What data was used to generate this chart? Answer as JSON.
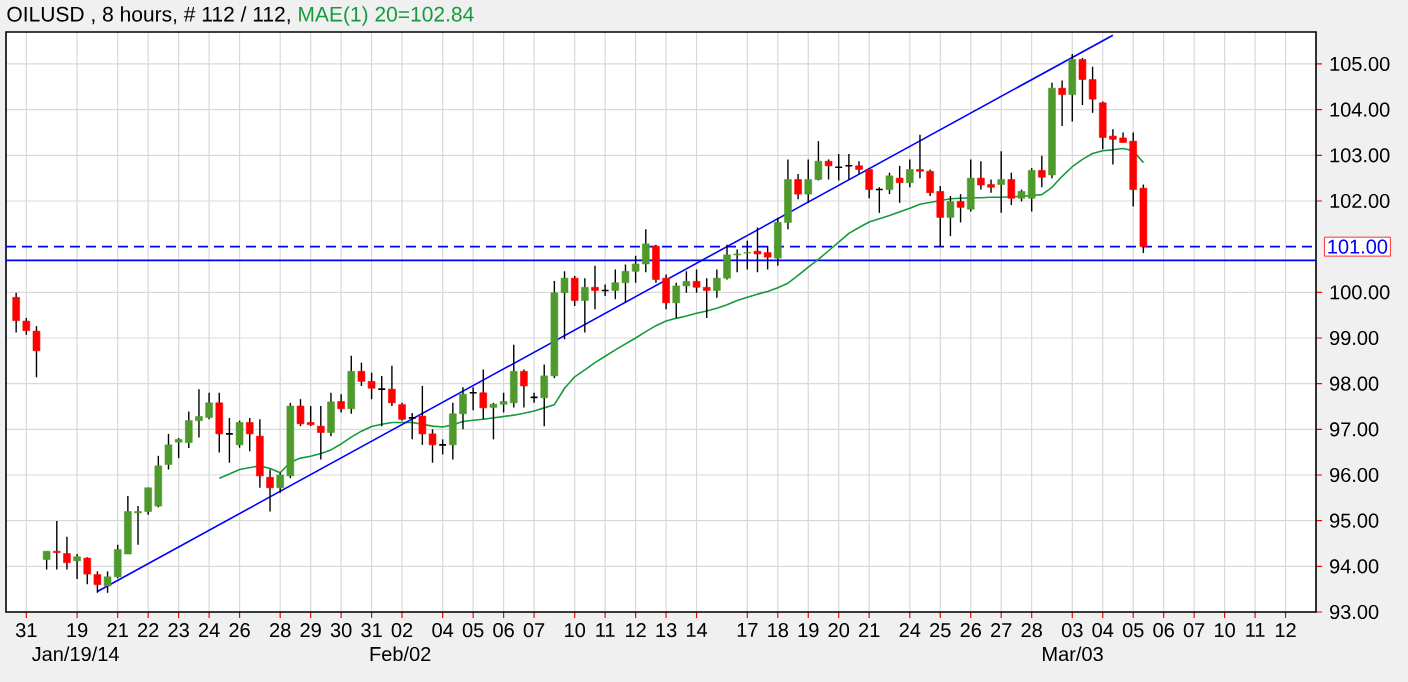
{
  "chart_data": {
    "type": "candlestick",
    "title": "OILUSD , 8 hours, # 112 / 112,",
    "categories": [
      null,
      "31",
      null,
      null,
      null,
      null,
      "19",
      null,
      null,
      null,
      "21",
      null,
      null,
      "22",
      null,
      null,
      "23",
      null,
      null,
      "24",
      null,
      null,
      "26",
      null,
      null,
      null,
      "28",
      null,
      null,
      "29",
      null,
      null,
      "30",
      null,
      null,
      "31",
      null,
      null,
      "02",
      null,
      null,
      null,
      "04",
      null,
      null,
      "05",
      null,
      null,
      "06",
      null,
      null,
      "07",
      null,
      null,
      null,
      "10",
      null,
      null,
      "11",
      null,
      null,
      "12",
      null,
      null,
      "13",
      null,
      null,
      "14",
      null,
      null,
      null,
      null,
      "17",
      null,
      null,
      "18",
      null,
      null,
      "19",
      null,
      null,
      "20",
      null,
      null,
      "21",
      null,
      null,
      null,
      "24",
      null,
      null,
      "25",
      null,
      null,
      "26",
      null,
      null,
      "27",
      null,
      null,
      "28",
      null,
      null,
      null,
      "03",
      null,
      null,
      "04",
      null,
      null,
      "05",
      null,
      null,
      "06",
      null,
      null,
      "07",
      null,
      null,
      "10",
      null,
      null,
      "11",
      null,
      null,
      "12",
      null,
      null,
      null
    ],
    "ohlc": [
      [
        99.89,
        99.99,
        99.12,
        99.38
      ],
      [
        99.37,
        99.44,
        99.07,
        99.16
      ],
      [
        99.15,
        99.26,
        98.14,
        98.72
      ],
      [
        94.15,
        94.33,
        93.93,
        94.33
      ],
      [
        94.33,
        94.99,
        93.93,
        94.3
      ],
      [
        94.28,
        94.65,
        93.93,
        94.08
      ],
      [
        94.12,
        94.27,
        93.72,
        94.21
      ],
      [
        94.18,
        94.2,
        93.61,
        93.83
      ],
      [
        93.82,
        93.89,
        93.42,
        93.6
      ],
      [
        93.57,
        93.89,
        93.42,
        93.77
      ],
      [
        93.77,
        94.47,
        93.74,
        94.37
      ],
      [
        94.27,
        95.54,
        94.27,
        95.2
      ],
      [
        95.17,
        95.32,
        94.47,
        95.2
      ],
      [
        95.2,
        95.72,
        95.13,
        95.72
      ],
      [
        95.32,
        96.42,
        95.29,
        96.2
      ],
      [
        96.23,
        96.9,
        96.12,
        96.66
      ],
      [
        96.72,
        96.81,
        96.37,
        96.78
      ],
      [
        96.71,
        97.39,
        96.59,
        97.19
      ],
      [
        97.19,
        97.88,
        96.82,
        97.28
      ],
      [
        97.26,
        97.8,
        97.22,
        97.58
      ],
      [
        97.58,
        97.8,
        96.49,
        96.9
      ],
      [
        96.9,
        97.25,
        96.27,
        96.9
      ],
      [
        96.66,
        97.19,
        96.6,
        97.15
      ],
      [
        97.15,
        97.25,
        96.52,
        96.9
      ],
      [
        96.85,
        97.22,
        95.72,
        95.98
      ],
      [
        95.95,
        96.12,
        95.2,
        95.72
      ],
      [
        95.72,
        96.05,
        95.61,
        96.0
      ],
      [
        95.98,
        97.58,
        95.93,
        97.51
      ],
      [
        97.51,
        97.66,
        97.07,
        97.12
      ],
      [
        97.15,
        97.51,
        97.07,
        97.1
      ],
      [
        97.07,
        97.51,
        96.34,
        96.93
      ],
      [
        96.93,
        97.8,
        96.85,
        97.6
      ],
      [
        97.61,
        97.77,
        97.37,
        97.45
      ],
      [
        97.45,
        98.61,
        97.34,
        98.27
      ],
      [
        98.27,
        98.46,
        97.95,
        98.05
      ],
      [
        98.05,
        98.24,
        97.66,
        97.9
      ],
      [
        97.88,
        98.17,
        97.07,
        97.88
      ],
      [
        97.88,
        98.39,
        97.51,
        97.58
      ],
      [
        97.54,
        97.58,
        97.19,
        97.22
      ],
      [
        97.25,
        97.36,
        96.78,
        97.25
      ],
      [
        97.29,
        97.95,
        96.66,
        96.9
      ],
      [
        96.9,
        97.0,
        96.27,
        96.66
      ],
      [
        96.66,
        96.78,
        96.45,
        96.66
      ],
      [
        96.66,
        97.58,
        96.34,
        97.34
      ],
      [
        97.34,
        97.92,
        97.0,
        97.77
      ],
      [
        97.8,
        97.92,
        97.42,
        97.8
      ],
      [
        97.8,
        98.31,
        97.22,
        97.47
      ],
      [
        97.48,
        97.58,
        96.78,
        97.55
      ],
      [
        97.55,
        97.8,
        97.37,
        97.61
      ],
      [
        97.58,
        98.85,
        97.48,
        98.27
      ],
      [
        98.27,
        98.31,
        97.48,
        97.95
      ],
      [
        97.7,
        97.8,
        97.58,
        97.7
      ],
      [
        97.69,
        98.42,
        97.07,
        98.17
      ],
      [
        98.17,
        100.25,
        98.12,
        99.99
      ],
      [
        99.99,
        100.46,
        98.97,
        100.31
      ],
      [
        100.31,
        100.36,
        99.7,
        99.82
      ],
      [
        99.82,
        100.31,
        99.12,
        100.11
      ],
      [
        100.11,
        100.58,
        99.63,
        100.04
      ],
      [
        100.04,
        100.17,
        99.92,
        100.04
      ],
      [
        100.04,
        100.5,
        99.85,
        100.21
      ],
      [
        100.21,
        100.61,
        99.77,
        100.46
      ],
      [
        100.46,
        100.8,
        100.21,
        100.62
      ],
      [
        100.62,
        101.38,
        100.44,
        101.06
      ],
      [
        101.01,
        101.04,
        100.21,
        100.28
      ],
      [
        100.31,
        100.39,
        99.63,
        99.77
      ],
      [
        99.77,
        100.21,
        99.44,
        100.14
      ],
      [
        100.14,
        100.46,
        99.99,
        100.24
      ],
      [
        100.24,
        100.5,
        99.99,
        100.11
      ],
      [
        100.11,
        100.31,
        99.44,
        100.04
      ],
      [
        100.04,
        100.5,
        99.88,
        100.31
      ],
      [
        100.31,
        101.04,
        100.28,
        100.82
      ],
      [
        100.82,
        100.94,
        100.44,
        100.84
      ],
      [
        100.86,
        101.13,
        100.5,
        100.87
      ],
      [
        100.9,
        101.42,
        100.44,
        100.84
      ],
      [
        100.87,
        101.01,
        100.5,
        100.77
      ],
      [
        100.75,
        101.63,
        100.58,
        101.53
      ],
      [
        101.53,
        102.91,
        101.38,
        102.47
      ],
      [
        102.47,
        102.59,
        102.04,
        102.15
      ],
      [
        102.15,
        102.91,
        101.96,
        102.47
      ],
      [
        102.47,
        103.31,
        102.45,
        102.87
      ],
      [
        102.87,
        102.91,
        102.47,
        102.77
      ],
      [
        102.74,
        103.03,
        102.45,
        102.74
      ],
      [
        102.77,
        103.03,
        102.47,
        102.77
      ],
      [
        102.77,
        102.87,
        102.59,
        102.69
      ],
      [
        102.69,
        102.72,
        102.06,
        102.25
      ],
      [
        102.25,
        102.3,
        101.74,
        102.25
      ],
      [
        102.25,
        102.62,
        102.15,
        102.55
      ],
      [
        102.5,
        102.77,
        101.96,
        102.4
      ],
      [
        102.4,
        102.91,
        102.3,
        102.69
      ],
      [
        102.69,
        103.45,
        102.5,
        102.65
      ],
      [
        102.65,
        102.69,
        102.11,
        102.18
      ],
      [
        102.21,
        102.33,
        100.99,
        101.64
      ],
      [
        101.64,
        102.11,
        101.23,
        101.99
      ],
      [
        101.99,
        102.15,
        101.53,
        101.86
      ],
      [
        101.82,
        102.91,
        101.77,
        102.5
      ],
      [
        102.5,
        102.87,
        102.25,
        102.35
      ],
      [
        102.36,
        102.47,
        102.18,
        102.3
      ],
      [
        102.36,
        103.09,
        101.74,
        102.47
      ],
      [
        102.47,
        102.62,
        101.91,
        102.06
      ],
      [
        102.06,
        102.25,
        101.99,
        102.21
      ],
      [
        102.06,
        102.72,
        101.77,
        102.67
      ],
      [
        102.67,
        102.99,
        102.3,
        102.52
      ],
      [
        102.57,
        104.59,
        102.5,
        104.47
      ],
      [
        104.47,
        104.64,
        103.64,
        104.33
      ],
      [
        104.33,
        105.22,
        103.74,
        105.1
      ],
      [
        105.1,
        105.13,
        104.1,
        104.66
      ],
      [
        104.66,
        104.94,
        103.93,
        104.23
      ],
      [
        104.15,
        104.18,
        103.13,
        103.39
      ],
      [
        103.42,
        103.57,
        102.8,
        103.35
      ],
      [
        103.38,
        103.5,
        103.28,
        103.28
      ],
      [
        103.31,
        103.5,
        101.88,
        102.25
      ],
      [
        102.28,
        102.36,
        100.86,
        101.0
      ],
      null,
      null,
      null,
      null,
      null,
      null,
      null,
      null,
      null,
      null,
      null,
      null,
      null,
      null,
      null,
      null,
      null
    ],
    "series": [
      {
        "type": "line",
        "name": "MAE(1) 20=102.84",
        "color": "#169a3c",
        "values": [
          null,
          null,
          null,
          null,
          null,
          null,
          null,
          null,
          null,
          null,
          null,
          null,
          null,
          null,
          null,
          null,
          null,
          null,
          null,
          null,
          95.93,
          96.02,
          96.12,
          96.16,
          96.2,
          96.14,
          96.05,
          96.28,
          96.37,
          96.41,
          96.47,
          96.55,
          96.68,
          96.83,
          96.96,
          97.06,
          97.11,
          97.15,
          97.15,
          97.15,
          97.11,
          97.07,
          97.05,
          97.1,
          97.17,
          97.2,
          97.22,
          97.25,
          97.28,
          97.31,
          97.35,
          97.4,
          97.47,
          97.54,
          97.9,
          98.15,
          98.3,
          98.46,
          98.6,
          98.74,
          98.87,
          99.0,
          99.14,
          99.27,
          99.37,
          99.43,
          99.48,
          99.54,
          99.59,
          99.65,
          99.73,
          99.82,
          99.89,
          99.96,
          100.02,
          100.1,
          100.2,
          100.37,
          100.55,
          100.72,
          100.91,
          101.1,
          101.29,
          101.42,
          101.54,
          101.61,
          101.68,
          101.76,
          101.84,
          101.93,
          101.97,
          102.01,
          102.05,
          102.06,
          102.07,
          102.07,
          102.08,
          102.08,
          102.09,
          102.1,
          102.12,
          102.14,
          102.3,
          102.54,
          102.75,
          102.91,
          103.04,
          103.1,
          103.12,
          103.15,
          103.1,
          102.84,
          null,
          null,
          null,
          null,
          null,
          null,
          null,
          null,
          null,
          null,
          null,
          null,
          null,
          null,
          null,
          null,
          null
        ]
      },
      {
        "type": "line",
        "color": "#0000ff",
        "values": [
          null,
          null,
          null,
          null,
          null,
          null,
          null,
          null,
          93.45,
          null,
          null,
          null,
          null,
          null,
          null,
          null,
          null,
          null,
          null,
          null,
          null,
          null,
          null,
          null,
          null,
          null,
          null,
          null,
          null,
          null,
          null,
          null,
          null,
          null,
          null,
          null,
          null,
          null,
          null,
          null,
          null,
          null,
          null,
          null,
          null,
          null,
          null,
          null,
          null,
          null,
          null,
          null,
          null,
          null,
          null,
          null,
          null,
          null,
          null,
          null,
          null,
          null,
          null,
          null,
          null,
          null,
          null,
          null,
          null,
          null,
          null,
          null,
          null,
          null,
          null,
          null,
          null,
          null,
          null,
          null,
          null,
          null,
          null,
          null,
          null,
          null,
          null,
          null,
          null,
          null,
          null,
          null,
          null,
          null,
          null,
          null,
          null,
          null,
          null,
          null,
          null,
          null,
          null,
          null,
          null,
          null,
          null,
          null,
          105.63,
          null,
          null,
          null,
          null,
          null,
          null,
          null,
          null,
          null,
          null,
          null,
          null,
          null,
          null,
          null,
          null,
          null,
          null,
          null,
          null
        ]
      }
    ],
    "ref_lines": [
      {
        "axis": "y",
        "value": 101.0,
        "label": "101.00",
        "color": "#0000ff",
        "line_style": "dashed"
      },
      {
        "axis": "y",
        "value": 100.7,
        "color": "#0000ff",
        "line_style": "solid"
      }
    ],
    "ylim": [
      93,
      105.7
    ],
    "x2lim": [
      "2014-01-16",
      "2014-03-13T12:00"
    ],
    "x2ticks": [
      {
        "value": "2014-01-19",
        "label": "Jan/19/14"
      },
      {
        "value": "2014-02-02",
        "label": "Feb/02"
      },
      {
        "value": "2014-03-03",
        "label": "Mar/03"
      }
    ],
    "yticks": [
      {
        "value": 93,
        "label": "93.00"
      },
      {
        "value": 94,
        "label": "94.00"
      },
      {
        "value": 95,
        "label": "95.00"
      },
      {
        "value": 96,
        "label": "96.00"
      },
      {
        "value": 97,
        "label": "97.00"
      },
      {
        "value": 98,
        "label": "98.00"
      },
      {
        "value": 99,
        "label": "99.00"
      },
      {
        "value": 100,
        "label": "100.00"
      },
      {
        "value": 102,
        "label": "102.00"
      },
      {
        "value": 103,
        "label": "103.00"
      },
      {
        "value": 104,
        "label": "104.00"
      },
      {
        "value": 105,
        "label": "105.00"
      }
    ],
    "grid": true
  }
}
